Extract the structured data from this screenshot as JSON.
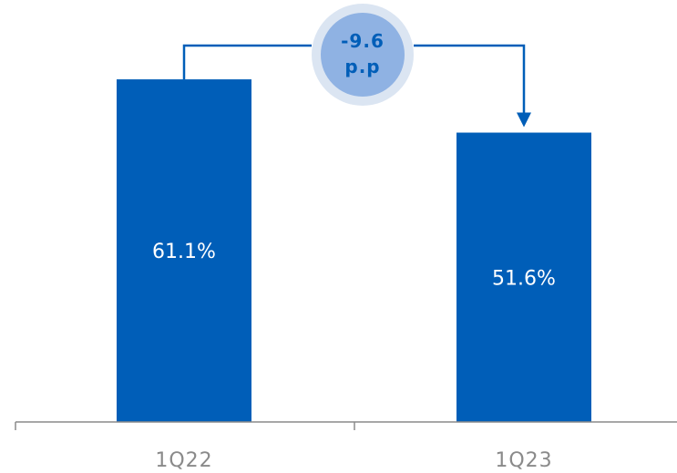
{
  "chart_data": {
    "type": "bar",
    "categories": [
      "1Q22",
      "1Q23"
    ],
    "values": [
      61.1,
      51.6
    ],
    "value_labels": [
      "61.1%",
      "51.6%"
    ],
    "ylim": [
      0,
      72
    ],
    "grid": false,
    "annotation": {
      "lines": [
        "-9.6",
        "p.p"
      ],
      "from": "1Q22",
      "to": "1Q23"
    }
  },
  "colors": {
    "bar": "#005eb8",
    "axis": "#8a8a8a",
    "bubble_outer": "#dbe5f2",
    "bubble_inner": "#8fb2e3",
    "bubble_text": "#005eb8",
    "connector": "#005eb8"
  }
}
